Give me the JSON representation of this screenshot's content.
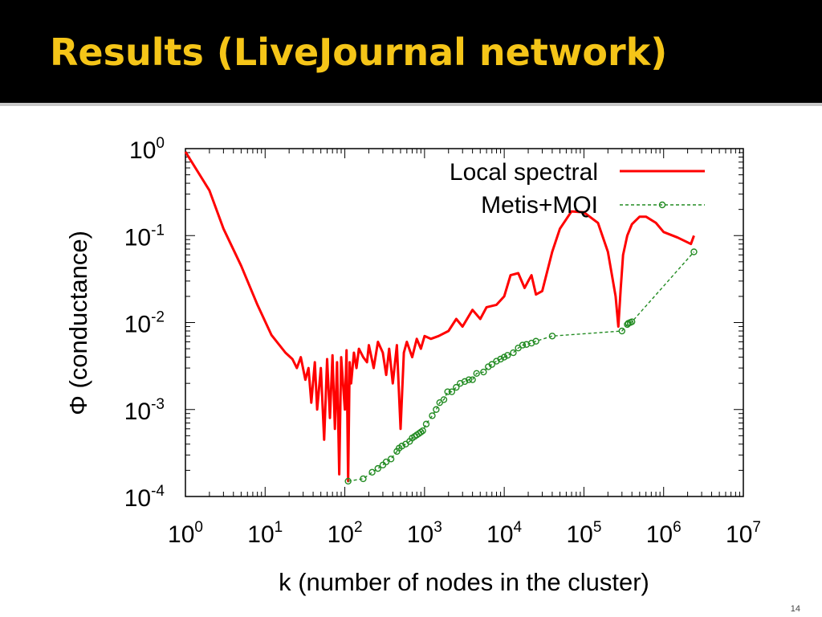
{
  "slide": {
    "title": "Results (LiveJournal network)",
    "page_number": "14"
  },
  "chart_data": {
    "type": "line",
    "xscale": "log",
    "yscale": "log",
    "xlim": [
      1,
      10000000
    ],
    "ylim": [
      0.0001,
      1
    ],
    "xlabel": "k (number of nodes in the cluster)",
    "ylabel": "Φ (conductance)",
    "legend_position": "top-right",
    "xticks": [
      {
        "value": 1,
        "base": "10",
        "exp": "0"
      },
      {
        "value": 10,
        "base": "10",
        "exp": "1"
      },
      {
        "value": 100,
        "base": "10",
        "exp": "2"
      },
      {
        "value": 1000,
        "base": "10",
        "exp": "3"
      },
      {
        "value": 10000,
        "base": "10",
        "exp": "4"
      },
      {
        "value": 100000,
        "base": "10",
        "exp": "5"
      },
      {
        "value": 1000000,
        "base": "10",
        "exp": "6"
      },
      {
        "value": 10000000,
        "base": "10",
        "exp": "7"
      }
    ],
    "yticks": [
      {
        "value": 1,
        "base": "10",
        "exp": "0"
      },
      {
        "value": 0.1,
        "base": "10",
        "exp": "-1"
      },
      {
        "value": 0.01,
        "base": "10",
        "exp": "-2"
      },
      {
        "value": 0.001,
        "base": "10",
        "exp": "-3"
      },
      {
        "value": 0.0001,
        "base": "10",
        "exp": "-4"
      }
    ],
    "series": [
      {
        "name": "Local spectral",
        "color": "#ff0000",
        "style": "solid",
        "marker": "none",
        "x": [
          1,
          2,
          3,
          5,
          8,
          12,
          18,
          22,
          25,
          28,
          32,
          35,
          38,
          42,
          45,
          50,
          55,
          60,
          65,
          70,
          75,
          80,
          85,
          90,
          100,
          105,
          110,
          115,
          120,
          130,
          140,
          150,
          170,
          190,
          200,
          230,
          260,
          300,
          330,
          360,
          400,
          450,
          500,
          550,
          600,
          700,
          800,
          900,
          1000,
          1200,
          1500,
          2000,
          2500,
          3000,
          4000,
          5000,
          6000,
          8000,
          10000,
          12000,
          15000,
          18000,
          20000,
          22000,
          25000,
          30000,
          40000,
          50000,
          70000,
          100000,
          150000,
          200000,
          250000,
          270000,
          290000,
          310000,
          350000,
          400000,
          500000,
          600000,
          800000,
          1000000,
          1500000,
          2200000,
          2400000
        ],
        "y": [
          0.92,
          0.33,
          0.12,
          0.045,
          0.016,
          0.0072,
          0.0045,
          0.0038,
          0.003,
          0.004,
          0.0022,
          0.003,
          0.0012,
          0.0035,
          0.001,
          0.003,
          0.00045,
          0.0038,
          0.0008,
          0.0042,
          0.0006,
          0.0035,
          0.00018,
          0.004,
          0.001,
          0.0048,
          0.00015,
          0.0035,
          0.002,
          0.0045,
          0.003,
          0.005,
          0.004,
          0.0035,
          0.0055,
          0.003,
          0.006,
          0.0045,
          0.0025,
          0.005,
          0.002,
          0.0055,
          0.0006,
          0.0045,
          0.006,
          0.004,
          0.0065,
          0.005,
          0.007,
          0.0065,
          0.007,
          0.008,
          0.011,
          0.009,
          0.014,
          0.011,
          0.015,
          0.016,
          0.02,
          0.035,
          0.037,
          0.025,
          0.03,
          0.035,
          0.021,
          0.023,
          0.065,
          0.12,
          0.19,
          0.185,
          0.14,
          0.065,
          0.02,
          0.009,
          0.025,
          0.06,
          0.1,
          0.135,
          0.165,
          0.165,
          0.14,
          0.11,
          0.095,
          0.08,
          0.1
        ]
      },
      {
        "name": "Metis+MQI",
        "color": "#228b22",
        "style": "dashed",
        "marker": "circle",
        "x": [
          110,
          170,
          220,
          260,
          300,
          330,
          380,
          450,
          480,
          520,
          580,
          650,
          700,
          750,
          800,
          850,
          900,
          950,
          1050,
          1250,
          1400,
          1550,
          1750,
          1950,
          2200,
          2500,
          2800,
          3200,
          3600,
          4000,
          4500,
          5500,
          6300,
          7000,
          8000,
          9000,
          10000,
          11000,
          13000,
          15000,
          17000,
          19000,
          22000,
          25000,
          40000,
          300000,
          350000,
          360000,
          380000,
          400000,
          2400000
        ],
        "y": [
          0.00015,
          0.00016,
          0.00019,
          0.00021,
          0.00023,
          0.00025,
          0.00027,
          0.00033,
          0.00036,
          0.00038,
          0.0004,
          0.00043,
          0.00047,
          0.00049,
          0.00051,
          0.00053,
          0.00055,
          0.00057,
          0.00068,
          0.00085,
          0.001,
          0.0012,
          0.0013,
          0.0016,
          0.0016,
          0.0018,
          0.002,
          0.0021,
          0.0022,
          0.0022,
          0.0026,
          0.0027,
          0.0031,
          0.0033,
          0.0036,
          0.0038,
          0.004,
          0.0042,
          0.0045,
          0.0051,
          0.0055,
          0.0056,
          0.0058,
          0.0061,
          0.007,
          0.008,
          0.0095,
          0.0098,
          0.01,
          0.0102,
          0.065
        ]
      }
    ]
  }
}
